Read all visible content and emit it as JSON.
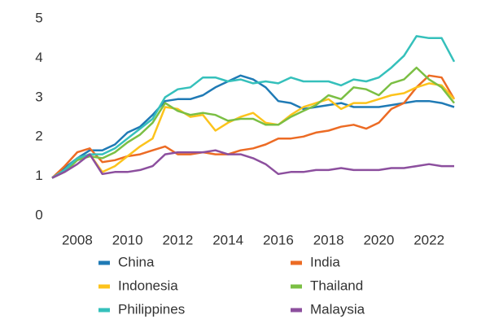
{
  "chart_data": {
    "type": "line",
    "x": [
      2007,
      2007.5,
      2008,
      2008.5,
      2009,
      2009.5,
      2010,
      2010.5,
      2011,
      2011.5,
      2012,
      2012.5,
      2013,
      2013.5,
      2014,
      2014.5,
      2015,
      2015.5,
      2016,
      2016.5,
      2017,
      2017.5,
      2018,
      2018.5,
      2019,
      2019.5,
      2020,
      2020.5,
      2021,
      2021.5,
      2022,
      2022.5,
      2023
    ],
    "xlim": [
      2007,
      2023
    ],
    "xticks": [
      2008,
      2010,
      2012,
      2014,
      2016,
      2018,
      2020,
      2022
    ],
    "ylim": [
      0,
      5
    ],
    "yticks": [
      0,
      1,
      2,
      3,
      4,
      5
    ],
    "grid": false,
    "series": [
      {
        "name": "China",
        "color": "#1f7ab5",
        "values": [
          1.0,
          1.25,
          1.5,
          1.7,
          1.7,
          1.85,
          2.15,
          2.3,
          2.6,
          2.95,
          3.0,
          3.0,
          3.1,
          3.3,
          3.45,
          3.6,
          3.5,
          3.3,
          2.95,
          2.9,
          2.75,
          2.8,
          2.85,
          2.9,
          2.8,
          2.8,
          2.8,
          2.85,
          2.9,
          2.95,
          2.95,
          2.9,
          2.8
        ]
      },
      {
        "name": "India",
        "color": "#ec6b24",
        "values": [
          1.0,
          1.3,
          1.65,
          1.75,
          1.4,
          1.45,
          1.55,
          1.6,
          1.7,
          1.8,
          1.6,
          1.6,
          1.65,
          1.6,
          1.6,
          1.7,
          1.75,
          1.85,
          2.0,
          2.0,
          2.05,
          2.15,
          2.2,
          2.3,
          2.35,
          2.25,
          2.4,
          2.75,
          2.9,
          3.3,
          3.6,
          3.55,
          3.0
        ]
      },
      {
        "name": "Indonesia",
        "color": "#fcc31c",
        "values": [
          1.0,
          1.2,
          1.5,
          1.6,
          1.15,
          1.3,
          1.55,
          1.8,
          2.0,
          2.8,
          2.75,
          2.55,
          2.6,
          2.2,
          2.4,
          2.55,
          2.65,
          2.4,
          2.35,
          2.6,
          2.8,
          2.9,
          3.0,
          2.75,
          2.9,
          2.9,
          3.0,
          3.1,
          3.15,
          3.3,
          3.4,
          3.35,
          3.0
        ]
      },
      {
        "name": "Thailand",
        "color": "#7bbf44",
        "values": [
          1.0,
          1.15,
          1.45,
          1.55,
          1.5,
          1.65,
          1.9,
          2.1,
          2.4,
          2.9,
          2.7,
          2.6,
          2.65,
          2.6,
          2.45,
          2.5,
          2.5,
          2.35,
          2.35,
          2.55,
          2.7,
          2.85,
          3.1,
          3.0,
          3.3,
          3.25,
          3.1,
          3.4,
          3.5,
          3.8,
          3.5,
          3.3,
          2.9
        ]
      },
      {
        "name": "Philippines",
        "color": "#35c0bb",
        "values": [
          1.0,
          1.2,
          1.5,
          1.6,
          1.6,
          1.75,
          2.0,
          2.25,
          2.5,
          3.05,
          3.25,
          3.3,
          3.55,
          3.55,
          3.45,
          3.5,
          3.4,
          3.45,
          3.4,
          3.55,
          3.45,
          3.45,
          3.45,
          3.35,
          3.5,
          3.45,
          3.55,
          3.8,
          4.1,
          4.6,
          4.55,
          4.55,
          3.95
        ]
      },
      {
        "name": "Malaysia",
        "color": "#8c4f9e",
        "values": [
          1.0,
          1.15,
          1.35,
          1.6,
          1.1,
          1.15,
          1.15,
          1.2,
          1.3,
          1.6,
          1.65,
          1.65,
          1.65,
          1.7,
          1.6,
          1.6,
          1.5,
          1.35,
          1.1,
          1.15,
          1.15,
          1.2,
          1.2,
          1.25,
          1.2,
          1.2,
          1.2,
          1.25,
          1.25,
          1.3,
          1.35,
          1.3,
          1.3
        ]
      }
    ]
  }
}
